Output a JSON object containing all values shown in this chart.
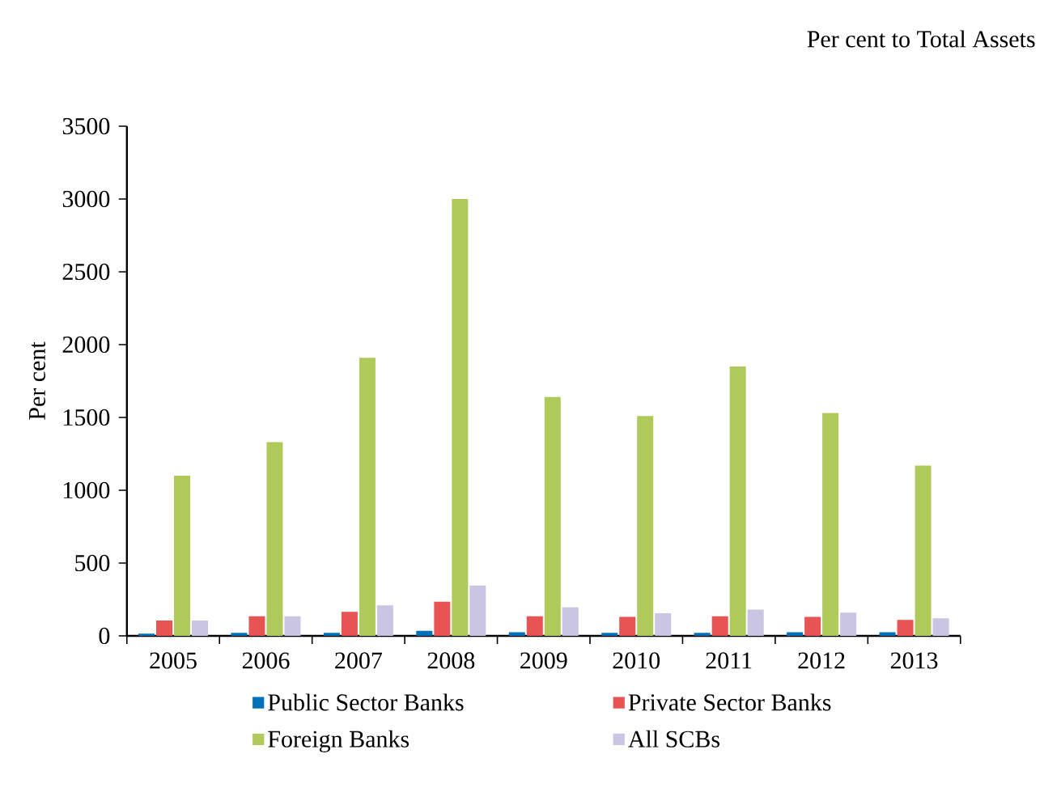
{
  "chart_data": {
    "type": "bar",
    "subtitle": "Per cent to Total Assets",
    "ylabel": "Per cent",
    "categories": [
      "2005",
      "2006",
      "2007",
      "2008",
      "2009",
      "2010",
      "2011",
      "2012",
      "2013"
    ],
    "series": [
      {
        "name": "Public Sector Banks",
        "color": "#0070b8",
        "values": [
          15,
          20,
          20,
          35,
          25,
          20,
          20,
          25,
          25
        ]
      },
      {
        "name": "Private Sector Banks",
        "color": "#e85454",
        "values": [
          105,
          135,
          165,
          235,
          135,
          130,
          135,
          130,
          110
        ]
      },
      {
        "name": "Foreign Banks",
        "color": "#afc95a",
        "values": [
          1100,
          1330,
          1910,
          3000,
          1640,
          1510,
          1850,
          1530,
          1170
        ]
      },
      {
        "name": "All SCBs",
        "color": "#c9c5e2",
        "values": [
          105,
          135,
          210,
          345,
          195,
          155,
          180,
          160,
          120
        ]
      }
    ],
    "ylim": [
      0,
      3500
    ],
    "yticks": [
      0,
      500,
      1000,
      1500,
      2000,
      2500,
      3000,
      3500
    ],
    "legend": "bottom"
  }
}
